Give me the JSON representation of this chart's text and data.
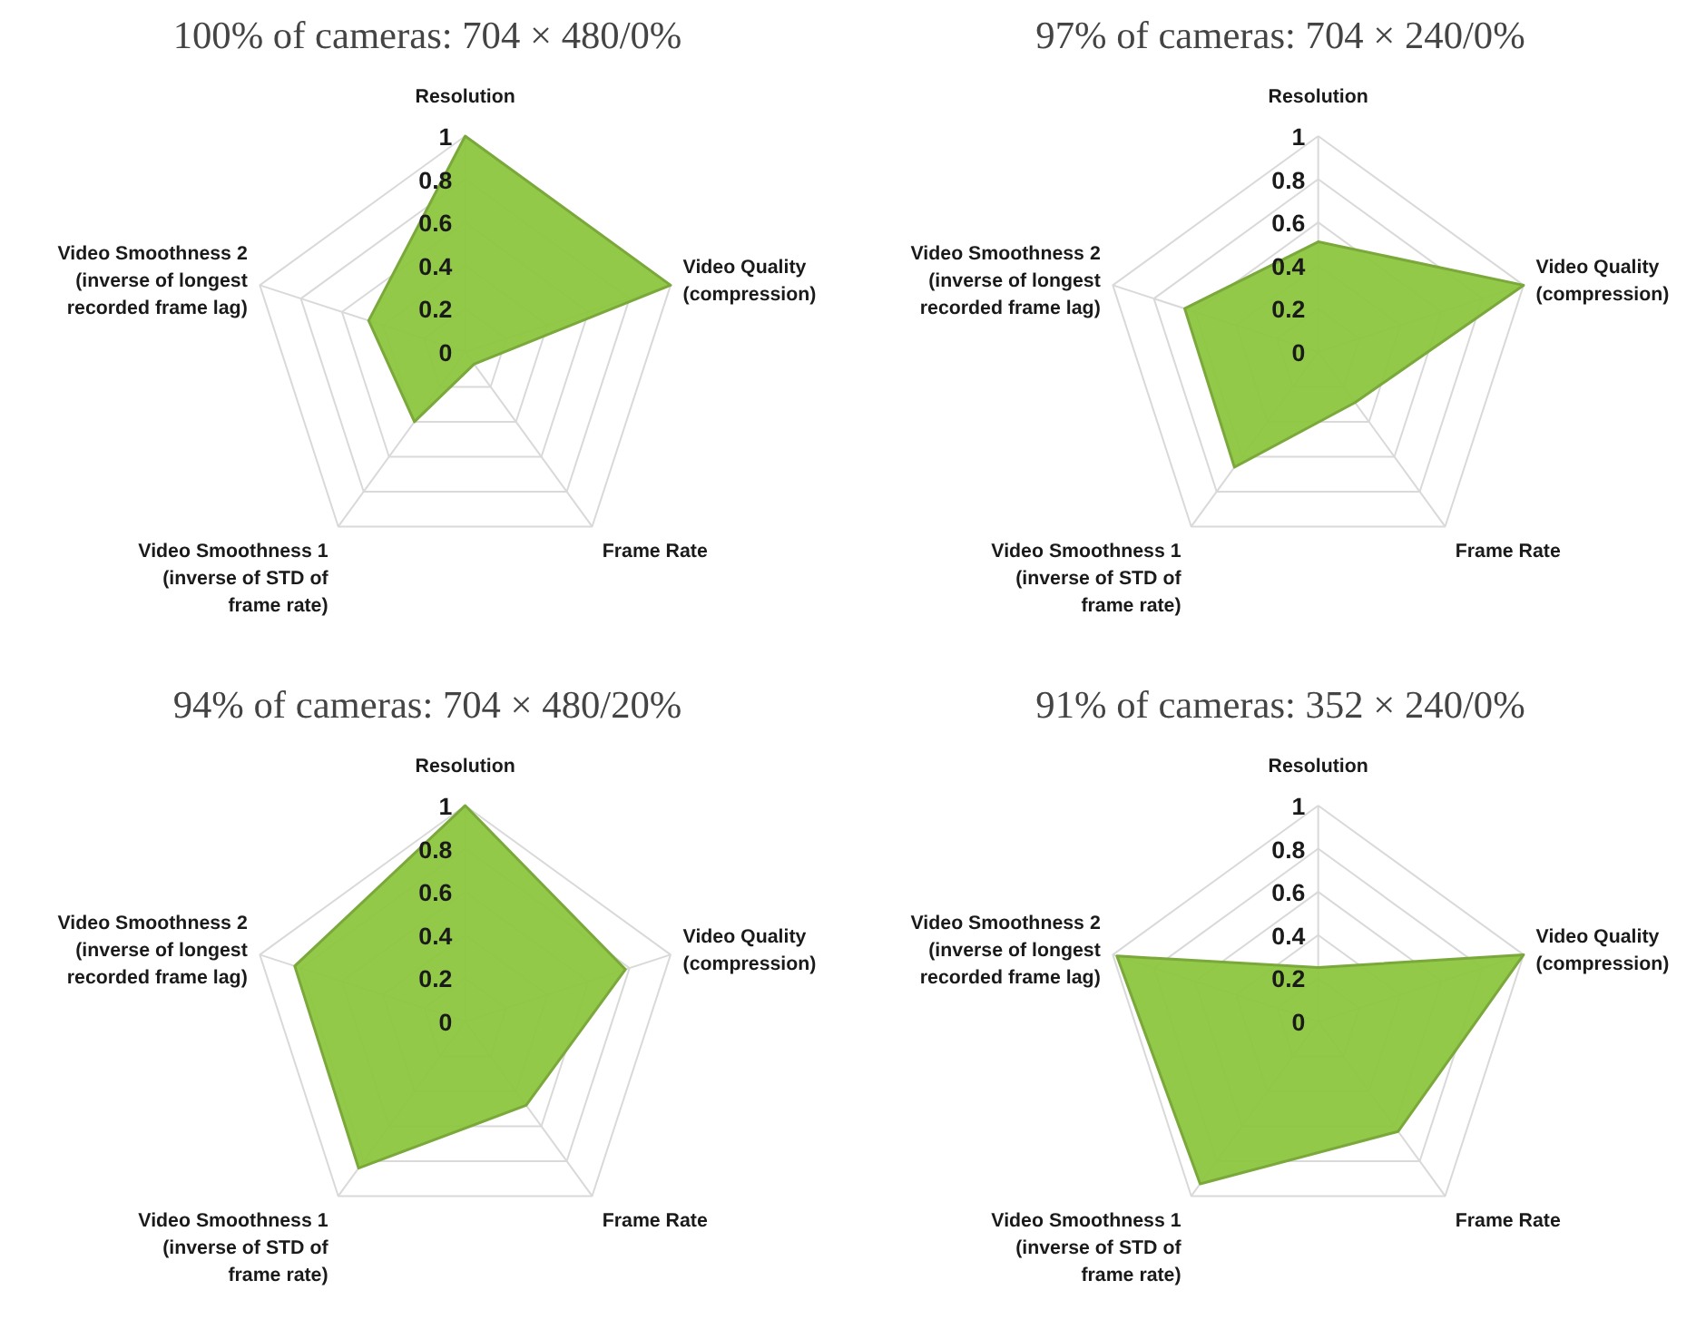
{
  "chart_data": [
    {
      "type": "radar",
      "title": "100% of cameras: 704 × 480/0%",
      "categories": [
        "Resolution",
        "Video Quality (compression)",
        "Frame Rate",
        "Video Smoothness 1 (inverse of STD of frame rate)",
        "Video Smoothness 2 (inverse of longest recorded frame lag)"
      ],
      "series": [
        {
          "color": "#8dc63f",
          "values": [
            1,
            1,
            0.07,
            0.4,
            0.47
          ]
        }
      ],
      "ylim": [
        0,
        1
      ],
      "yticks": [
        0,
        0.2,
        0.4,
        0.6,
        0.8,
        1
      ],
      "grid": true
    },
    {
      "type": "radar",
      "title": "97% of cameras: 704 × 240/0%",
      "categories": [
        "Resolution",
        "Video Quality (compression)",
        "Frame Rate",
        "Video Smoothness 1 (inverse of STD of frame rate)",
        "Video Smoothness 2 (inverse of longest recorded frame lag)"
      ],
      "series": [
        {
          "color": "#8dc63f",
          "values": [
            0.51,
            1,
            0.29,
            0.66,
            0.65
          ]
        }
      ],
      "ylim": [
        0,
        1
      ],
      "yticks": [
        0,
        0.2,
        0.4,
        0.6,
        0.8,
        1
      ],
      "grid": true
    },
    {
      "type": "radar",
      "title": "94% of cameras: 704 × 480/20%",
      "categories": [
        "Resolution",
        "Video Quality (compression)",
        "Frame Rate",
        "Video Smoothness 1 (inverse of STD of frame rate)",
        "Video Smoothness 2 (inverse of longest recorded frame lag)"
      ],
      "series": [
        {
          "color": "#8dc63f",
          "values": [
            1,
            0.78,
            0.48,
            0.84,
            0.83
          ]
        }
      ],
      "ylim": [
        0,
        1
      ],
      "yticks": [
        0,
        0.2,
        0.4,
        0.6,
        0.8,
        1
      ],
      "grid": true
    },
    {
      "type": "radar",
      "title": "91% of cameras: 352 × 240/0%",
      "categories": [
        "Resolution",
        "Video Quality (compression)",
        "Frame Rate",
        "Video Smoothness 1 (inverse of STD of frame rate)",
        "Video Smoothness 2 (inverse of longest recorded frame lag)"
      ],
      "series": [
        {
          "color": "#8dc63f",
          "values": [
            0.25,
            1,
            0.63,
            0.93,
            0.98
          ]
        }
      ],
      "ylim": [
        0,
        1
      ],
      "yticks": [
        0,
        0.2,
        0.4,
        0.6,
        0.8,
        1
      ],
      "grid": true
    }
  ]
}
